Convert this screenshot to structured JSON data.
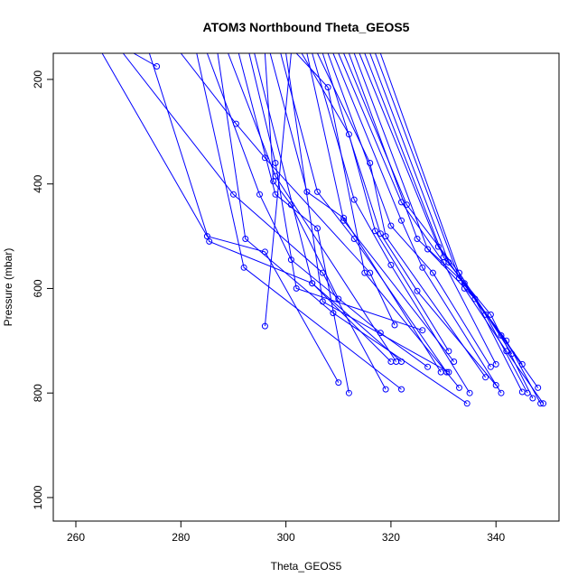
{
  "chart_data": {
    "type": "line",
    "title": "ATOM3 Northbound Theta_GEOS5",
    "xlabel": "Theta_GEOS5",
    "ylabel": "Pressure (mbar)",
    "xlim": [
      255.7,
      352.0
    ],
    "ylim": [
      1045,
      150
    ],
    "y_axis_inverted": true,
    "x_ticks": [
      260,
      280,
      300,
      320,
      340
    ],
    "y_ticks": [
      200,
      400,
      600,
      800,
      1000
    ],
    "grid": false,
    "legend": "none",
    "series_color": "#0000ff",
    "marker": "open-circle",
    "series": [
      {
        "values": [
          [
            265,
            150
          ],
          [
            285,
            500
          ],
          [
            296,
            530
          ],
          [
            310,
            780
          ]
        ]
      },
      {
        "values": [
          [
            269,
            150
          ],
          [
            290,
            420
          ],
          [
            307,
            570
          ],
          [
            319,
            793
          ]
        ]
      },
      {
        "values": [
          [
            271,
            150
          ],
          [
            275.4,
            175
          ]
        ]
      },
      {
        "values": [
          [
            274,
            150
          ],
          [
            285.4,
            510
          ],
          [
            305,
            590
          ],
          [
            320,
            740
          ]
        ]
      },
      {
        "values": [
          [
            280,
            150
          ],
          [
            290.5,
            285
          ],
          [
            296,
            350
          ],
          [
            316,
            570
          ],
          [
            320.7,
            670
          ]
        ]
      },
      {
        "values": [
          [
            283,
            150
          ],
          [
            292,
            560
          ],
          [
            322,
            793
          ]
        ]
      },
      {
        "values": [
          [
            285,
            150
          ],
          [
            295,
            420
          ],
          [
            301,
            545
          ],
          [
            318,
            685
          ],
          [
            327,
            750
          ]
        ]
      },
      {
        "values": [
          [
            287,
            150
          ],
          [
            292.3,
            505
          ],
          [
            309,
            647
          ],
          [
            334.5,
            820
          ]
        ]
      },
      {
        "values": [
          [
            289,
            150
          ],
          [
            298,
            385
          ],
          [
            321,
            740
          ]
        ]
      },
      {
        "values": [
          [
            291,
            150
          ],
          [
            298,
            420
          ],
          [
            306,
            485
          ],
          [
            312,
            800
          ]
        ]
      },
      {
        "values": [
          [
            293,
            150
          ],
          [
            298,
            360
          ],
          [
            302,
            600
          ],
          [
            326,
            680
          ]
        ]
      },
      {
        "values": [
          [
            294,
            150
          ],
          [
            305,
            590
          ],
          [
            322,
            740
          ]
        ]
      },
      {
        "values": [
          [
            296,
            150
          ],
          [
            297.6,
            395
          ],
          [
            301,
            440
          ],
          [
            310,
            620
          ]
        ]
      },
      {
        "values": [
          [
            297,
            150
          ],
          [
            304,
            415
          ],
          [
            311,
            465
          ],
          [
            329.5,
            760
          ]
        ]
      },
      {
        "values": [
          [
            299,
            150
          ],
          [
            306,
            415
          ],
          [
            313,
            505
          ],
          [
            330.6,
            760
          ]
        ]
      },
      {
        "values": [
          [
            300,
            150
          ],
          [
            307,
            625
          ],
          [
            331,
            760
          ]
        ]
      },
      {
        "values": [
          [
            301,
            150
          ],
          [
            296,
            672
          ]
        ]
      },
      {
        "values": [
          [
            302,
            150
          ],
          [
            308,
            215
          ],
          [
            315,
            570
          ],
          [
            333,
            790
          ]
        ]
      },
      {
        "values": [
          [
            303,
            150
          ],
          [
            312,
            305
          ],
          [
            317,
            490
          ],
          [
            331,
            720
          ]
        ]
      },
      {
        "values": [
          [
            304,
            150
          ],
          [
            311,
            470
          ],
          [
            332,
            740
          ]
        ]
      },
      {
        "values": [
          [
            305,
            150
          ],
          [
            313,
            430
          ],
          [
            320,
            555
          ],
          [
            335,
            800
          ]
        ]
      },
      {
        "values": [
          [
            306,
            150
          ],
          [
            316,
            360
          ],
          [
            319,
            500
          ],
          [
            338,
            770
          ]
        ]
      },
      {
        "values": [
          [
            307,
            150
          ],
          [
            318,
            495
          ],
          [
            325,
            605
          ],
          [
            340,
            785
          ]
        ]
      },
      {
        "values": [
          [
            308,
            150
          ],
          [
            320,
            480
          ],
          [
            328,
            570
          ],
          [
            339,
            750
          ]
        ]
      },
      {
        "values": [
          [
            309,
            150
          ],
          [
            322,
            470
          ],
          [
            326,
            560
          ],
          [
            341,
            800
          ]
        ]
      },
      {
        "values": [
          [
            310,
            150
          ],
          [
            322,
            435
          ],
          [
            330,
            550
          ],
          [
            340,
            745
          ]
        ]
      },
      {
        "values": [
          [
            311,
            150
          ],
          [
            323,
            440
          ],
          [
            333,
            570
          ],
          [
            343,
            725
          ]
        ]
      },
      {
        "values": [
          [
            312,
            150
          ],
          [
            325,
            505
          ],
          [
            334,
            590
          ],
          [
            345,
            745
          ]
        ]
      },
      {
        "values": [
          [
            313,
            150
          ],
          [
            327,
            525
          ],
          [
            336,
            620
          ],
          [
            345,
            798
          ]
        ]
      },
      {
        "values": [
          [
            314,
            150
          ],
          [
            329,
            520
          ],
          [
            338,
            650
          ],
          [
            346,
            800
          ]
        ]
      },
      {
        "values": [
          [
            315,
            150
          ],
          [
            330,
            540
          ],
          [
            339,
            650
          ],
          [
            347,
            810
          ]
        ]
      },
      {
        "values": [
          [
            316,
            150
          ],
          [
            331,
            550
          ],
          [
            341,
            690
          ],
          [
            348,
            790
          ]
        ]
      },
      {
        "values": [
          [
            317,
            150
          ],
          [
            333,
            580
          ],
          [
            342,
            700
          ],
          [
            348.5,
            820
          ]
        ]
      },
      {
        "values": [
          [
            318,
            150
          ],
          [
            334,
            600
          ],
          [
            342,
            720
          ],
          [
            349,
            820
          ]
        ]
      }
    ]
  }
}
